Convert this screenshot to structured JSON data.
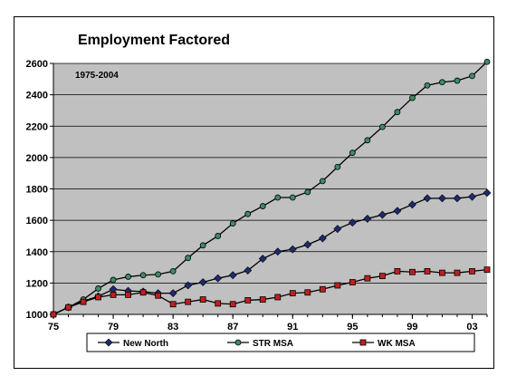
{
  "chart_data": {
    "type": "line",
    "title": "Employment Factored",
    "annotation": "1975-2004",
    "xlabel": "",
    "ylabel": "",
    "x": [
      1975,
      1976,
      1977,
      1978,
      1979,
      1980,
      1981,
      1982,
      1983,
      1984,
      1985,
      1986,
      1987,
      1988,
      1989,
      1990,
      1991,
      1992,
      1993,
      1994,
      1995,
      1996,
      1997,
      1998,
      1999,
      2000,
      2001,
      2002,
      2003,
      2004
    ],
    "xlim": [
      1975,
      2004
    ],
    "ylim": [
      1000,
      2600
    ],
    "yticks": [
      1000,
      1200,
      1400,
      1600,
      1800,
      2000,
      2200,
      2400,
      2600
    ],
    "xticks": [
      1975,
      1979,
      1983,
      1987,
      1991,
      1995,
      1999,
      2003
    ],
    "xtick_labels": [
      "75",
      "79",
      "83",
      "87",
      "91",
      "95",
      "99",
      "03"
    ],
    "ytick_labels": [
      "1000",
      "1200",
      "1400",
      "1600",
      "1800",
      "2000",
      "2200",
      "2400",
      "2600"
    ],
    "grid": true,
    "legend": "bottom",
    "series": [
      {
        "name": "New North",
        "marker": "diamond",
        "color": "#1f2a6e",
        "values": [
          1000,
          1045,
          1085,
          1115,
          1160,
          1150,
          1145,
          1135,
          1135,
          1185,
          1205,
          1230,
          1250,
          1280,
          1355,
          1400,
          1415,
          1445,
          1485,
          1545,
          1585,
          1610,
          1635,
          1660,
          1700,
          1740,
          1740,
          1740,
          1750,
          1775
        ]
      },
      {
        "name": "STR MSA",
        "marker": "circle",
        "color": "#3c8c64",
        "values": [
          1000,
          1045,
          1095,
          1165,
          1220,
          1240,
          1250,
          1255,
          1275,
          1360,
          1440,
          1500,
          1580,
          1640,
          1690,
          1745,
          1745,
          1780,
          1850,
          1940,
          2030,
          2110,
          2195,
          2290,
          2380,
          2460,
          2480,
          2490,
          2520,
          2610
        ]
      },
      {
        "name": "WK MSA",
        "marker": "square",
        "color": "#c02020",
        "values": [
          1000,
          1045,
          1080,
          1110,
          1125,
          1125,
          1140,
          1120,
          1065,
          1080,
          1095,
          1070,
          1065,
          1090,
          1095,
          1110,
          1135,
          1140,
          1160,
          1185,
          1205,
          1230,
          1245,
          1275,
          1270,
          1275,
          1265,
          1265,
          1275,
          1285
        ]
      }
    ]
  }
}
